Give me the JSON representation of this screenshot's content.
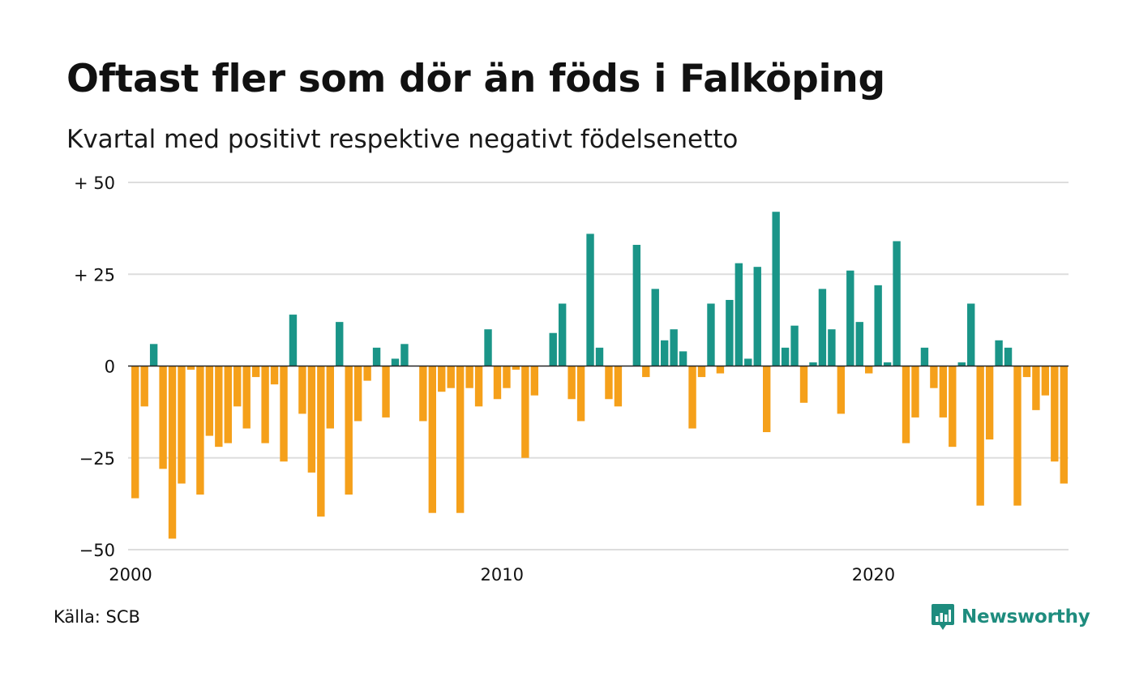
{
  "header": {
    "title": "Oftast fler som dör än föds i Falköping",
    "subtitle": "Kvartal med positivt respektive negativt födelsenetto"
  },
  "footer": {
    "source": "Källa: SCB",
    "brand": "Newsworthy",
    "brand_icon": "newsworthy-logo-icon"
  },
  "colors": {
    "positive": "#1a9588",
    "negative": "#f5a01a",
    "grid": "#dddddd",
    "brand": "#1e8c7e"
  },
  "chart_data": {
    "type": "bar",
    "xlabel": "",
    "ylabel": "",
    "ylim": [
      -50,
      50
    ],
    "y_ticks": [
      {
        "value": 50,
        "label": "+ 50"
      },
      {
        "value": 25,
        "label": "+ 25"
      },
      {
        "value": 0,
        "label": "0"
      },
      {
        "value": -25,
        "label": "−25"
      },
      {
        "value": -50,
        "label": "−50"
      }
    ],
    "x_ticks": [
      {
        "value": 2000,
        "label": "2000"
      },
      {
        "value": 2010,
        "label": "2010"
      },
      {
        "value": 2020,
        "label": "2020"
      }
    ],
    "grid": true,
    "legend": "none",
    "x_start": "2000 kv1",
    "series": [
      {
        "values": [
          -36,
          -11,
          6,
          -28,
          -47,
          -32,
          -1,
          -35,
          -19,
          -22,
          -21,
          -11,
          -17,
          -3,
          -21,
          -5,
          -26,
          14,
          -13,
          -29,
          -41,
          -17,
          12,
          -35,
          -15,
          -4,
          5,
          -14,
          2,
          6,
          0,
          -15,
          -40,
          -7,
          -6,
          -40,
          -6,
          -11,
          10,
          -9,
          -6,
          -1,
          -25,
          -8,
          0,
          9,
          17,
          -9,
          -15,
          36,
          5,
          -9,
          -11,
          0,
          33,
          -3,
          21,
          7,
          10,
          4,
          -17,
          -3,
          17,
          -2,
          18,
          28,
          2,
          27,
          -18,
          42,
          5,
          11,
          -10,
          1,
          21,
          10,
          -13,
          26,
          12,
          -2,
          22,
          1,
          34,
          -21,
          -14,
          5,
          -6,
          -14,
          -22,
          1,
          17,
          -38,
          -20,
          7,
          5,
          -38,
          -3,
          -12,
          -8,
          -26,
          -32
        ]
      }
    ]
  }
}
